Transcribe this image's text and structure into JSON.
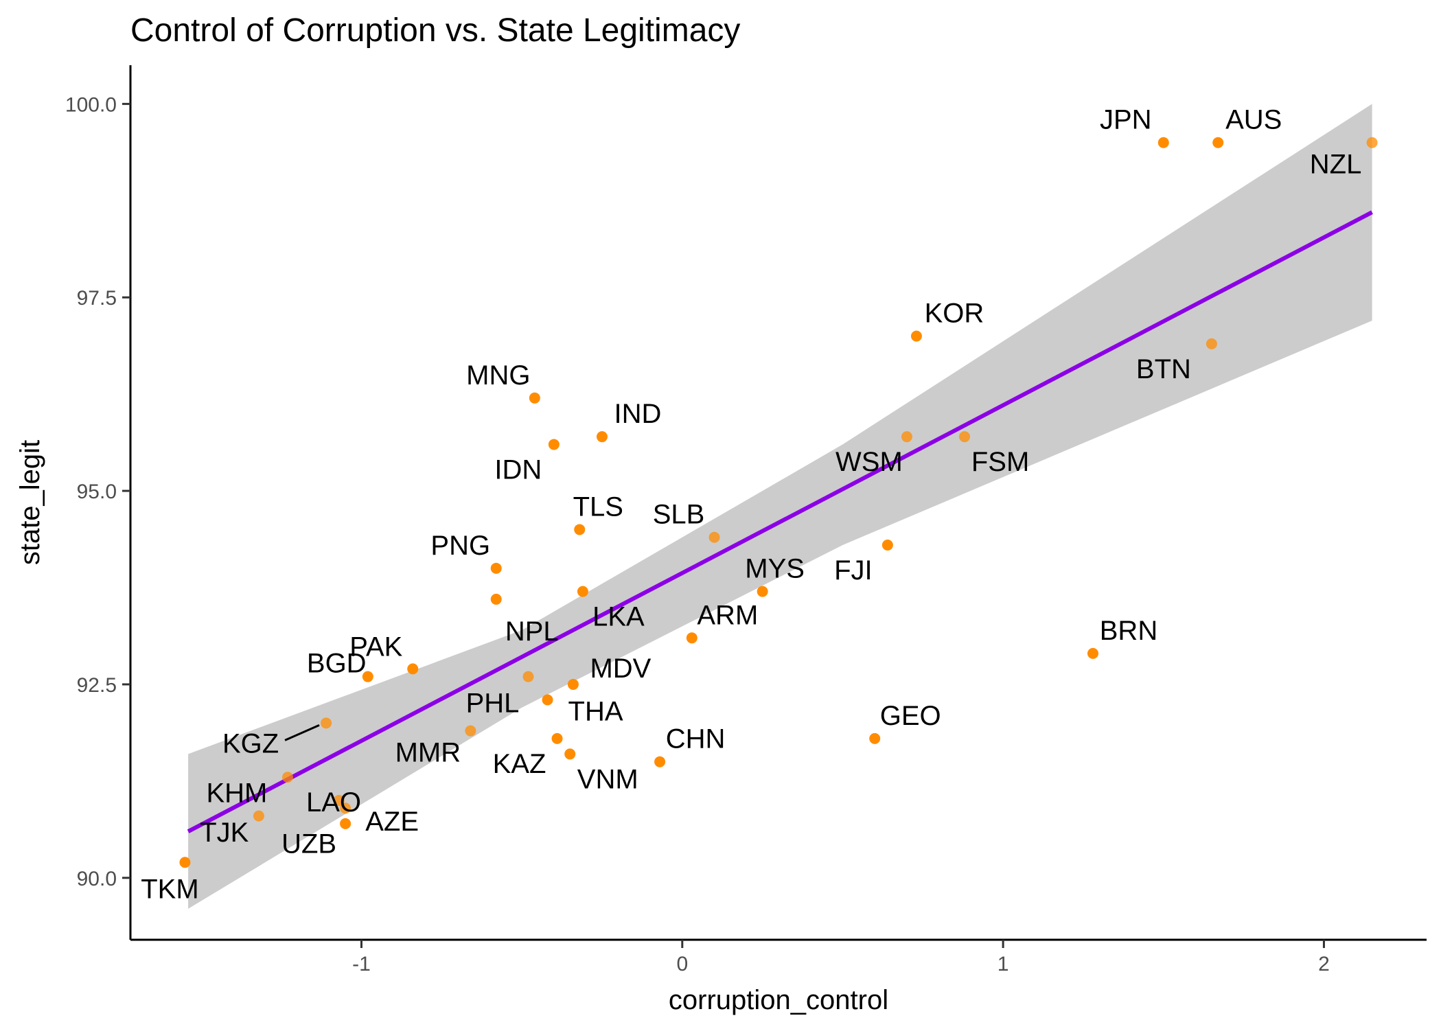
{
  "chart_data": {
    "type": "scatter",
    "title": "Control of Corruption vs. State Legitimacy",
    "xlabel": "corruption_control",
    "ylabel": "state_legit",
    "xlim": [
      -1.72,
      2.32
    ],
    "ylim": [
      89.2,
      100.5
    ],
    "x_ticks": [
      -1,
      0,
      1,
      2
    ],
    "y_ticks": [
      90.0,
      92.5,
      95.0,
      97.5,
      100.0
    ],
    "x_tick_labels": [
      "-1",
      "0",
      "1",
      "2"
    ],
    "y_tick_labels": [
      "90.0",
      "92.5",
      "95.0",
      "97.5",
      "100.0"
    ],
    "grid": false,
    "point_color": "#ff8c00",
    "fit_color": "#8c00e6",
    "band_color": "#cccccc",
    "fit_line": {
      "x": [
        -1.54,
        2.15
      ],
      "y": [
        90.6,
        98.6
      ]
    },
    "confidence_band": {
      "x": [
        -1.54,
        -0.5,
        0.5,
        2.15
      ],
      "lower": [
        89.6,
        92.2,
        94.3,
        97.2
      ],
      "upper": [
        91.6,
        93.2,
        95.6,
        100.0
      ]
    },
    "points": [
      {
        "label": "JPN",
        "x": 1.5,
        "y": 99.5
      },
      {
        "label": "AUS",
        "x": 1.67,
        "y": 99.5
      },
      {
        "label": "NZL",
        "x": 2.15,
        "y": 99.5
      },
      {
        "label": "KOR",
        "x": 0.73,
        "y": 97.0
      },
      {
        "label": "BTN",
        "x": 1.65,
        "y": 96.9
      },
      {
        "label": "MNG",
        "x": -0.46,
        "y": 96.2
      },
      {
        "label": "IND",
        "x": -0.25,
        "y": 95.7
      },
      {
        "label": "IDN",
        "x": -0.4,
        "y": 95.6
      },
      {
        "label": "WSM",
        "x": 0.7,
        "y": 95.7
      },
      {
        "label": "FSM",
        "x": 0.88,
        "y": 95.7
      },
      {
        "label": "TLS",
        "x": -0.32,
        "y": 94.5
      },
      {
        "label": "SLB",
        "x": 0.1,
        "y": 94.4
      },
      {
        "label": "FJI",
        "x": 0.64,
        "y": 94.3
      },
      {
        "label": "PNG",
        "x": -0.58,
        "y": 94.0
      },
      {
        "label": "MYS",
        "x": 0.25,
        "y": 93.7
      },
      {
        "label": "LKA",
        "x": -0.31,
        "y": 93.7
      },
      {
        "label": "NPL",
        "x": -0.58,
        "y": 93.6
      },
      {
        "label": "ARM",
        "x": 0.03,
        "y": 93.1
      },
      {
        "label": "BRN",
        "x": 1.28,
        "y": 92.9
      },
      {
        "label": "PAK",
        "x": -0.98,
        "y": 92.6
      },
      {
        "label": "MDV",
        "x": -0.34,
        "y": 92.5
      },
      {
        "label": "PHL",
        "x": -0.48,
        "y": 92.6
      },
      {
        "label": "THA",
        "x": -0.42,
        "y": 92.3
      },
      {
        "label": "BGD",
        "x": -0.84,
        "y": 92.7
      },
      {
        "label": "KGZ",
        "x": -1.11,
        "y": 92.0
      },
      {
        "label": "MMR",
        "x": -0.66,
        "y": 91.9
      },
      {
        "label": "GEO",
        "x": 0.6,
        "y": 91.8
      },
      {
        "label": "KAZ",
        "x": -0.39,
        "y": 91.8
      },
      {
        "label": "VNM",
        "x": -0.35,
        "y": 91.6
      },
      {
        "label": "CHN",
        "x": -0.07,
        "y": 91.5
      },
      {
        "label": "LAO",
        "x": -1.23,
        "y": 91.3
      },
      {
        "label": "KHM",
        "x": -1.32,
        "y": 90.8
      },
      {
        "label": "AZE",
        "x": -1.05,
        "y": 90.7
      },
      {
        "label": "UZB",
        "x": -1.05,
        "y": 90.9
      },
      {
        "label": "TJK",
        "x": -1.07,
        "y": 91.0
      },
      {
        "label": "TKM",
        "x": -1.55,
        "y": 90.2
      }
    ]
  }
}
